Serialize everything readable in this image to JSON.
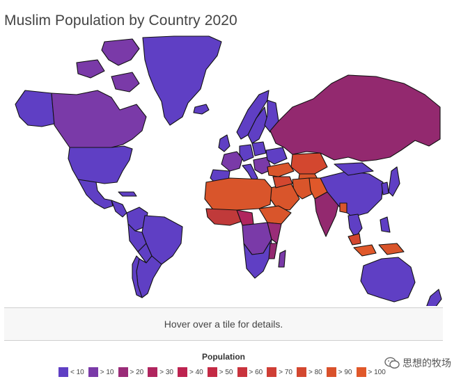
{
  "title": "Muslim Population by Country 2020",
  "info_text": "Hover over a tile for details.",
  "legend": {
    "title": "Population",
    "items": [
      {
        "label": "< 10",
        "color": "#5f3fc4"
      },
      {
        "label": "> 10",
        "color": "#7a3aa8"
      },
      {
        "label": "> 20",
        "color": "#9a2c78"
      },
      {
        "label": "> 30",
        "color": "#b0255e"
      },
      {
        "label": "> 40",
        "color": "#bd2350"
      },
      {
        "label": "> 50",
        "color": "#c42a45"
      },
      {
        "label": "> 60",
        "color": "#c9333d"
      },
      {
        "label": "> 70",
        "color": "#cf3e35"
      },
      {
        "label": "> 80",
        "color": "#d3472f"
      },
      {
        "label": "> 90",
        "color": "#d9512b"
      },
      {
        "label": "> 100",
        "color": "#e0582a"
      }
    ]
  },
  "watermark": "思想的牧场",
  "colors": {
    "low": "#5f3fc4",
    "mid_low": "#7a3aa8",
    "mid": "#93296f",
    "high": "#c03a3a",
    "very_high": "#d9552b",
    "ocean": "#ffffff"
  }
}
